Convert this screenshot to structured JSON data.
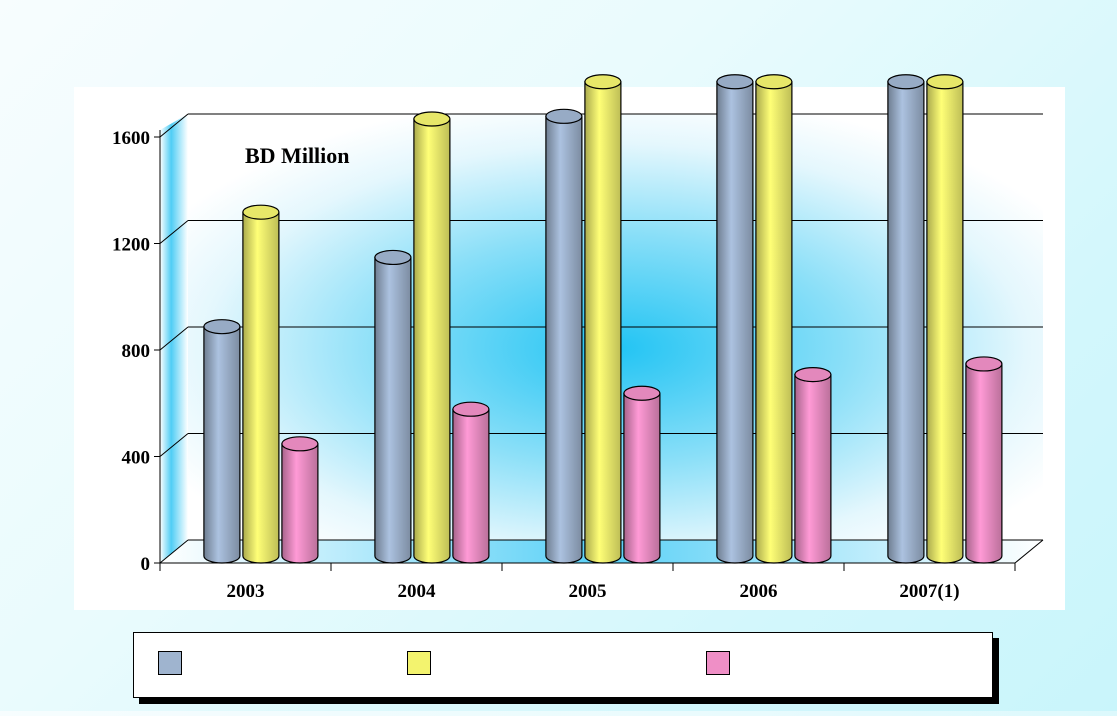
{
  "chart_data": {
    "type": "bar",
    "annotation": "BD Million",
    "categories": [
      "2003",
      "2004",
      "2005",
      "2006",
      "2007(1)"
    ],
    "yticks": [
      "0",
      "400",
      "800",
      "1200",
      "1600"
    ],
    "ylim": [
      0,
      1700
    ],
    "grid": true,
    "legend_position": "bottom",
    "series": [
      {
        "values": [
          790,
          1050,
          1580,
          1710,
          1710
        ],
        "color": "#9fb4cf"
      },
      {
        "values": [
          1220,
          1570,
          1710,
          1710,
          1710
        ],
        "color": "#f3f36e"
      },
      {
        "values": [
          350,
          480,
          540,
          610,
          650
        ],
        "color": "#ef8fc6"
      }
    ]
  }
}
